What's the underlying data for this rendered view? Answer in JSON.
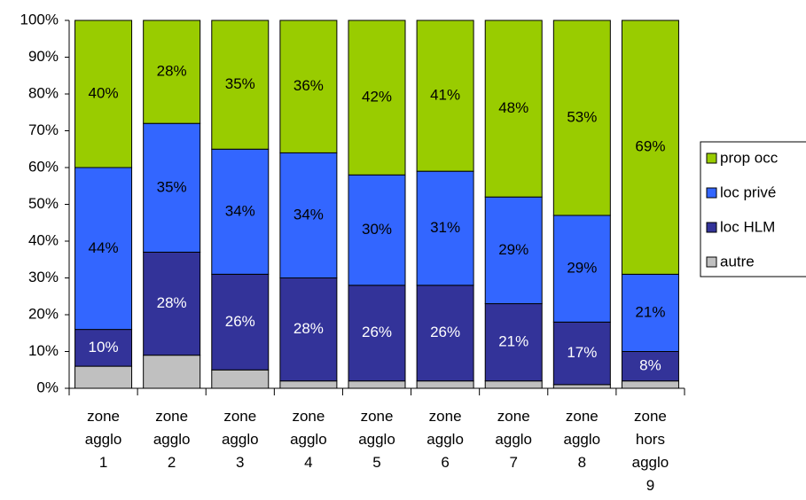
{
  "chart_data": {
    "type": "stacked_bar",
    "categories": [
      "zone agglo 1",
      "zone agglo 2",
      "zone agglo 3",
      "zone agglo 4",
      "zone agglo 5",
      "zone agglo 6",
      "zone agglo 7",
      "zone agglo 8",
      "zone hors agglo 9"
    ],
    "series": [
      {
        "name": "autre",
        "color": "#c0c0c0",
        "values": [
          6,
          9,
          5,
          2,
          2,
          2,
          2,
          1,
          2
        ]
      },
      {
        "name": "loc HLM",
        "color": "#333399",
        "label_color": "#ffffff",
        "values": [
          10,
          28,
          26,
          28,
          26,
          26,
          21,
          17,
          8
        ],
        "value_labels": [
          "10%",
          "28%",
          "26%",
          "28%",
          "26%",
          "26%",
          "21%",
          "17%",
          "8%"
        ]
      },
      {
        "name": "loc privé",
        "color": "#3366ff",
        "label_color": "#000000",
        "values": [
          44,
          35,
          34,
          34,
          30,
          31,
          29,
          29,
          21
        ],
        "value_labels": [
          "44%",
          "35%",
          "34%",
          "34%",
          "30%",
          "31%",
          "29%",
          "29%",
          "21%"
        ]
      },
      {
        "name": "prop occ",
        "color": "#99cc00",
        "label_color": "#000000",
        "values": [
          40,
          28,
          35,
          36,
          42,
          41,
          48,
          53,
          69
        ],
        "value_labels": [
          "40%",
          "28%",
          "35%",
          "36%",
          "42%",
          "41%",
          "48%",
          "53%",
          "69%"
        ]
      }
    ],
    "ylim": [
      0,
      100
    ],
    "yticks": [
      {
        "value": 0,
        "label": "0%"
      },
      {
        "value": 10,
        "label": "10%"
      },
      {
        "value": 20,
        "label": "20%"
      },
      {
        "value": 30,
        "label": "30%"
      },
      {
        "value": 40,
        "label": "40%"
      },
      {
        "value": 50,
        "label": "50%"
      },
      {
        "value": 60,
        "label": "60%"
      },
      {
        "value": 70,
        "label": "70%"
      },
      {
        "value": 80,
        "label": "80%"
      },
      {
        "value": 90,
        "label": "90%"
      },
      {
        "value": 100,
        "label": "100%"
      }
    ],
    "grid": false,
    "legend": "right"
  }
}
